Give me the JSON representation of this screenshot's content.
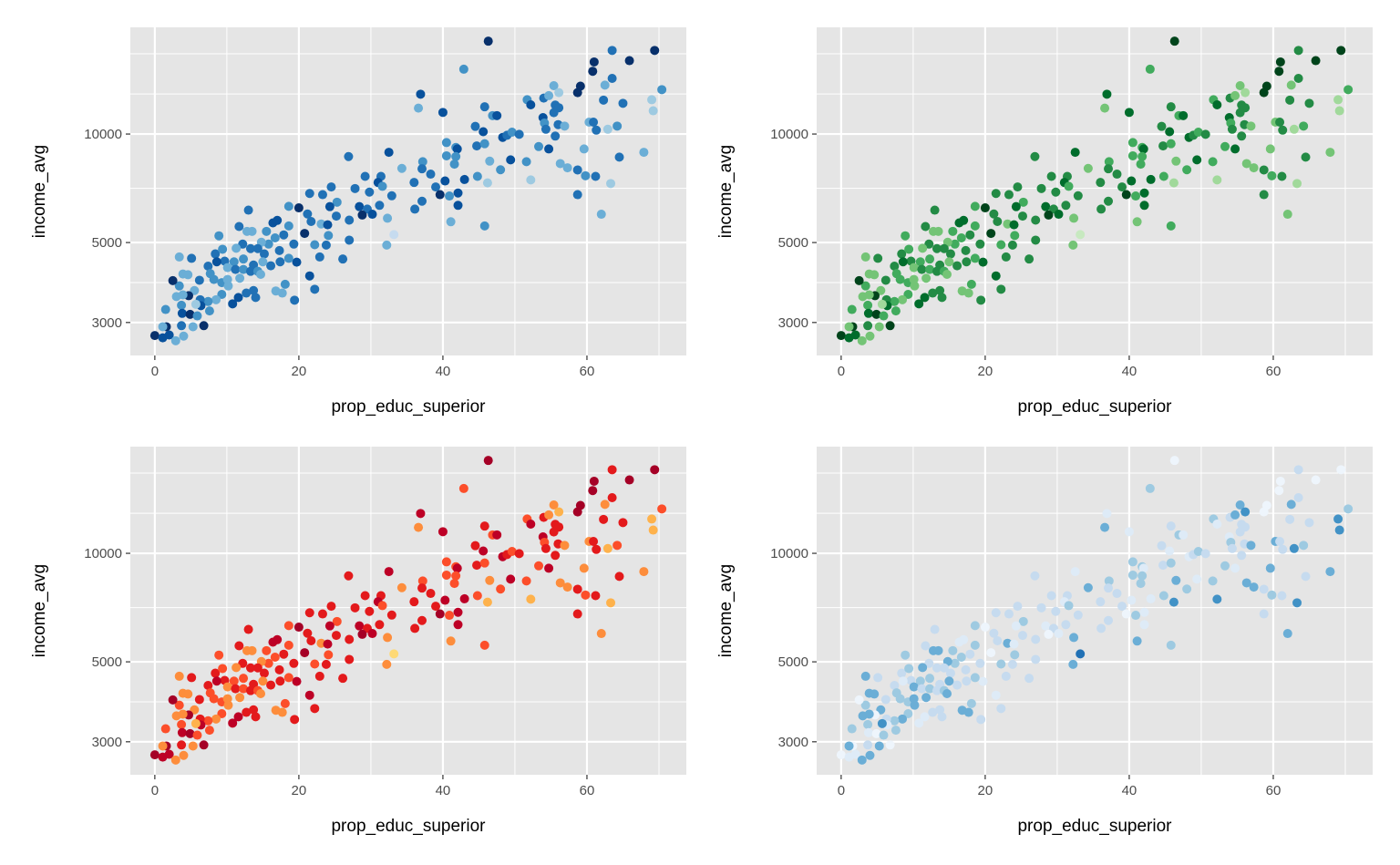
{
  "chart_data": {
    "type": "scatter",
    "xlabel": "prop_educ_superior",
    "ylabel": "income_avg",
    "y_scale": "log10",
    "xlim": [
      -3.4,
      73.8
    ],
    "ylim": [
      2430,
      19770
    ],
    "x_ticks": [
      0,
      20,
      40,
      60
    ],
    "x_tick_labels": [
      "0",
      "20",
      "40",
      "60"
    ],
    "x_minor_ticks": [
      10,
      30,
      50,
      70
    ],
    "y_ticks": [
      3000,
      5000,
      10000
    ],
    "y_tick_labels": [
      "3000",
      "5000",
      "10000"
    ],
    "y_minor_ticks": [
      3873,
      7071,
      12915,
      16700
    ],
    "grid": true,
    "panel_background": "#e5e5e5",
    "panels": [
      {
        "palette": [
          "#f7fbff",
          "#deebf7",
          "#c6dbef",
          "#9ecae1",
          "#6baed6",
          "#4292c6",
          "#2171b5",
          "#08519c",
          "#08306b"
        ]
      },
      {
        "palette": [
          "#f7fcf5",
          "#e5f5e0",
          "#c7e9c0",
          "#a1d99b",
          "#74c476",
          "#41ab5d",
          "#238b45",
          "#006d2c",
          "#00441b"
        ]
      },
      {
        "palette": [
          "#ffffcc",
          "#ffeda0",
          "#fed976",
          "#feb24c",
          "#fd8d3c",
          "#fc4e2a",
          "#e31a1c",
          "#bd0026",
          "#a50026"
        ]
      },
      {
        "palette": [
          "#08306b",
          "#08519c",
          "#2171b5",
          "#4292c6",
          "#6baed6",
          "#9ecae1",
          "#c6dbef",
          "#deebf7",
          "#eef5fc"
        ]
      }
    ],
    "points": [
      [
        46.3,
        18100,
        9
      ],
      [
        42.9,
        15130,
        6
      ],
      [
        36.9,
        12900,
        8
      ],
      [
        36.6,
        11800,
        5
      ],
      [
        40.0,
        11480,
        8
      ],
      [
        45.8,
        11900,
        7
      ],
      [
        46.9,
        11250,
        6
      ],
      [
        47.5,
        11250,
        8
      ],
      [
        44.5,
        10500,
        7
      ],
      [
        45.6,
        10150,
        8
      ],
      [
        44.7,
        9270,
        7
      ],
      [
        45.8,
        9400,
        6
      ],
      [
        48.3,
        9790,
        8
      ],
      [
        48.9,
        9920,
        7
      ],
      [
        49.6,
        10120,
        6
      ],
      [
        50.6,
        9980,
        7
      ],
      [
        40.5,
        9470,
        6
      ],
      [
        41.8,
        9180,
        6
      ],
      [
        42.0,
        9090,
        8
      ],
      [
        40.5,
        8700,
        6
      ],
      [
        41.8,
        8660,
        6
      ],
      [
        41.6,
        8250,
        6
      ],
      [
        46.5,
        8410,
        5
      ],
      [
        48.0,
        7960,
        6
      ],
      [
        49.4,
        8480,
        8
      ],
      [
        51.6,
        8380,
        6
      ],
      [
        52.2,
        7460,
        4
      ],
      [
        44.8,
        7630,
        6
      ],
      [
        46.2,
        7320,
        4
      ],
      [
        43.0,
        7480,
        8
      ],
      [
        40.3,
        7410,
        8
      ],
      [
        39.0,
        7130,
        7
      ],
      [
        39.6,
        6790,
        9
      ],
      [
        40.9,
        6730,
        6
      ],
      [
        42.1,
        6860,
        8
      ],
      [
        42.1,
        6340,
        8
      ],
      [
        41.1,
        5710,
        5
      ],
      [
        45.8,
        5560,
        6
      ],
      [
        37.2,
        8380,
        6
      ],
      [
        37.1,
        8010,
        7
      ],
      [
        38.3,
        7740,
        7
      ],
      [
        36.0,
        7340,
        7
      ],
      [
        37.1,
        6510,
        7
      ],
      [
        36.1,
        6190,
        7
      ],
      [
        51.7,
        12450,
        6
      ],
      [
        52.2,
        12050,
        8
      ],
      [
        54.0,
        12580,
        7
      ],
      [
        54.7,
        12780,
        5
      ],
      [
        55.4,
        13620,
        5
      ],
      [
        56.1,
        13030,
        4
      ],
      [
        55.6,
        12030,
        7
      ],
      [
        56.1,
        11830,
        7
      ],
      [
        55.4,
        11460,
        7
      ],
      [
        53.9,
        11110,
        8
      ],
      [
        54.1,
        10730,
        6
      ],
      [
        54.3,
        10310,
        7
      ],
      [
        56.0,
        10620,
        7
      ],
      [
        56.9,
        10520,
        5
      ],
      [
        55.6,
        9870,
        7
      ],
      [
        53.3,
        9230,
        6
      ],
      [
        54.7,
        9090,
        8
      ],
      [
        56.3,
        8280,
        5
      ],
      [
        57.3,
        8060,
        5
      ],
      [
        58.7,
        7950,
        7
      ],
      [
        59.8,
        7660,
        6
      ],
      [
        61.2,
        7630,
        7
      ],
      [
        58.7,
        6790,
        7
      ],
      [
        62.0,
        5990,
        5
      ],
      [
        59.6,
        9090,
        5
      ],
      [
        63.3,
        7290,
        4
      ],
      [
        64.5,
        8630,
        7
      ],
      [
        67.9,
        8900,
        5
      ],
      [
        58.7,
        13030,
        9
      ],
      [
        59.1,
        13580,
        9
      ],
      [
        60.8,
        14930,
        9
      ],
      [
        61.0,
        15850,
        9
      ],
      [
        63.5,
        17060,
        7
      ],
      [
        65.9,
        15980,
        9
      ],
      [
        69.4,
        17060,
        9
      ],
      [
        63.5,
        14270,
        7
      ],
      [
        62.5,
        13670,
        5
      ],
      [
        62.3,
        12420,
        7
      ],
      [
        65.0,
        12170,
        7
      ],
      [
        70.4,
        13280,
        6
      ],
      [
        69.0,
        12450,
        4
      ],
      [
        69.2,
        11600,
        4
      ],
      [
        60.3,
        10790,
        5
      ],
      [
        60.9,
        10790,
        7
      ],
      [
        61.3,
        10250,
        7
      ],
      [
        62.9,
        10310,
        4
      ],
      [
        64.2,
        10520,
        6
      ],
      [
        26.9,
        8660,
        7
      ],
      [
        32.5,
        8900,
        8
      ],
      [
        34.3,
        8030,
        5
      ],
      [
        29.2,
        7630,
        7
      ],
      [
        31.4,
        7630,
        7
      ],
      [
        31.0,
        7340,
        8
      ],
      [
        31.6,
        7160,
        6
      ],
      [
        32.9,
        6740,
        7
      ],
      [
        27.8,
        7060,
        7
      ],
      [
        29.8,
        6900,
        7
      ],
      [
        21.5,
        6840,
        7
      ],
      [
        23.3,
        6790,
        7
      ],
      [
        24.5,
        7130,
        7
      ],
      [
        25.3,
        6470,
        6
      ],
      [
        24.3,
        6290,
        8
      ],
      [
        25.2,
        5920,
        7
      ],
      [
        18.6,
        6300,
        6
      ],
      [
        20.0,
        6240,
        9
      ],
      [
        21.2,
        6000,
        7
      ],
      [
        21.7,
        5720,
        7
      ],
      [
        23.1,
        5630,
        5
      ],
      [
        24.0,
        5600,
        8
      ],
      [
        24.1,
        5230,
        6
      ],
      [
        27.0,
        5770,
        7
      ],
      [
        28.4,
        6290,
        8
      ],
      [
        29.5,
        6190,
        7
      ],
      [
        31.2,
        6340,
        7
      ],
      [
        28.8,
        5960,
        9
      ],
      [
        30.2,
        5990,
        8
      ],
      [
        32.3,
        5840,
        5
      ],
      [
        33.2,
        5260,
        3
      ],
      [
        32.2,
        4920,
        5
      ],
      [
        27.0,
        5077,
        7
      ],
      [
        22.2,
        4930,
        6
      ],
      [
        23.8,
        4920,
        7
      ],
      [
        22.9,
        4560,
        7
      ],
      [
        26.1,
        4500,
        7
      ],
      [
        20.8,
        5300,
        9
      ],
      [
        21.5,
        4040,
        8
      ],
      [
        22.2,
        3710,
        7
      ],
      [
        19.4,
        3460,
        7
      ],
      [
        18.1,
        3830,
        6
      ],
      [
        16.8,
        3670,
        5
      ],
      [
        17.7,
        3620,
        5
      ],
      [
        13.0,
        6150,
        7
      ],
      [
        11.7,
        5540,
        7
      ],
      [
        8.9,
        5220,
        6
      ],
      [
        12.8,
        5370,
        5
      ],
      [
        13.5,
        5370,
        5
      ],
      [
        15.5,
        5370,
        6
      ],
      [
        16.4,
        5670,
        8
      ],
      [
        17.0,
        5760,
        8
      ],
      [
        18.6,
        5560,
        6
      ],
      [
        17.9,
        5250,
        7
      ],
      [
        16.7,
        5150,
        6
      ],
      [
        15.8,
        4950,
        6
      ],
      [
        14.8,
        5010,
        5
      ],
      [
        12.2,
        4950,
        7
      ],
      [
        13.3,
        4810,
        7
      ],
      [
        14.3,
        4810,
        7
      ],
      [
        11.3,
        4820,
        5
      ],
      [
        15.2,
        4650,
        7
      ],
      [
        17.3,
        4750,
        7
      ],
      [
        19.3,
        4950,
        7
      ],
      [
        19.7,
        4410,
        8
      ],
      [
        18.6,
        4520,
        6
      ],
      [
        17.4,
        4420,
        7
      ],
      [
        16.1,
        4310,
        7
      ],
      [
        15.0,
        4420,
        5
      ],
      [
        13.7,
        4330,
        7
      ],
      [
        12.3,
        4500,
        6
      ],
      [
        11.0,
        4420,
        6
      ],
      [
        9.7,
        4440,
        7
      ],
      [
        8.4,
        4650,
        7
      ],
      [
        9.4,
        4790,
        6
      ],
      [
        8.6,
        4420,
        8
      ],
      [
        10.1,
        4260,
        5
      ],
      [
        11.2,
        4210,
        7
      ],
      [
        12.3,
        4210,
        6
      ],
      [
        13.3,
        4160,
        7
      ],
      [
        14.3,
        4160,
        6
      ],
      [
        14.7,
        4080,
        5
      ],
      [
        11.8,
        3980,
        5
      ],
      [
        13.7,
        3680,
        7
      ],
      [
        12.7,
        3620,
        7
      ],
      [
        11.6,
        3520,
        8
      ],
      [
        10.8,
        3380,
        8
      ],
      [
        14.0,
        3520,
        7
      ],
      [
        7.4,
        4300,
        7
      ],
      [
        6.2,
        3930,
        7
      ],
      [
        7.7,
        4100,
        6
      ],
      [
        8.2,
        3950,
        6
      ],
      [
        9.3,
        3870,
        6
      ],
      [
        10.2,
        3790,
        5
      ],
      [
        10.1,
        3950,
        5
      ],
      [
        9.3,
        3590,
        6
      ],
      [
        8.5,
        3470,
        5
      ],
      [
        7.4,
        3430,
        6
      ],
      [
        6.3,
        3470,
        7
      ],
      [
        5.5,
        3680,
        5
      ],
      [
        4.7,
        3560,
        9
      ],
      [
        3.9,
        3580,
        5
      ],
      [
        3.0,
        3540,
        5
      ],
      [
        3.4,
        3790,
        6
      ],
      [
        2.5,
        3920,
        9
      ],
      [
        3.9,
        4090,
        5
      ],
      [
        4.6,
        4070,
        5
      ],
      [
        3.4,
        4560,
        5
      ],
      [
        5.1,
        4520,
        7
      ],
      [
        3.7,
        3350,
        6
      ],
      [
        3.8,
        3180,
        8
      ],
      [
        4.9,
        3160,
        9
      ],
      [
        5.9,
        3130,
        6
      ],
      [
        6.8,
        2940,
        9
      ],
      [
        7.6,
        3230,
        6
      ],
      [
        6.4,
        3340,
        8
      ],
      [
        5.3,
        2920,
        5
      ],
      [
        3.7,
        2940,
        7
      ],
      [
        1.5,
        3260,
        6
      ],
      [
        1.6,
        2920,
        9
      ],
      [
        1.1,
        2920,
        5
      ],
      [
        0.0,
        2760,
        9
      ],
      [
        1.1,
        2720,
        8
      ],
      [
        2.0,
        2770,
        8
      ],
      [
        2.9,
        2670,
        5
      ],
      [
        4.0,
        2750,
        5
      ],
      [
        5.7,
        3370,
        4
      ]
    ]
  }
}
